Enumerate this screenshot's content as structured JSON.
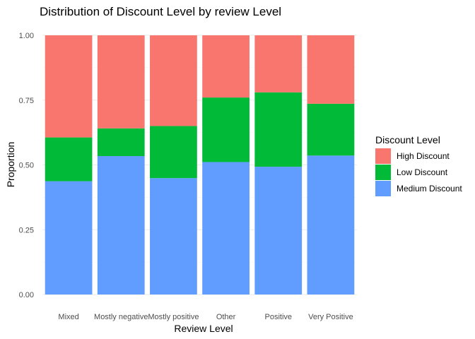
{
  "chart_data": {
    "type": "bar",
    "stacked": true,
    "title": "Distribution of Discount Level by review Level",
    "xlabel": "Review Level",
    "ylabel": "Proportion",
    "ylim": [
      0,
      1
    ],
    "yticks": [
      "0.00",
      "0.25",
      "0.50",
      "0.75",
      "1.00"
    ],
    "ytick_values": [
      0,
      0.25,
      0.5,
      0.75,
      1.0
    ],
    "grid": true,
    "categories": [
      "Mixed",
      "Mostly negative",
      "Mostly positive",
      "Other",
      "Positive",
      "Very Positive"
    ],
    "series": [
      {
        "name": "Medium Discount",
        "color": "#619CFF",
        "values": [
          0.437,
          0.534,
          0.449,
          0.511,
          0.493,
          0.536
        ]
      },
      {
        "name": "Low Discount",
        "color": "#00BA38",
        "values": [
          0.169,
          0.107,
          0.201,
          0.249,
          0.287,
          0.2
        ]
      },
      {
        "name": "High Discount",
        "color": "#F8766D",
        "values": [
          0.394,
          0.359,
          0.35,
          0.24,
          0.22,
          0.264
        ]
      }
    ],
    "legend": {
      "title": "Discount Level",
      "placement": "right",
      "order": [
        "High Discount",
        "Low Discount",
        "Medium Discount"
      ]
    }
  }
}
